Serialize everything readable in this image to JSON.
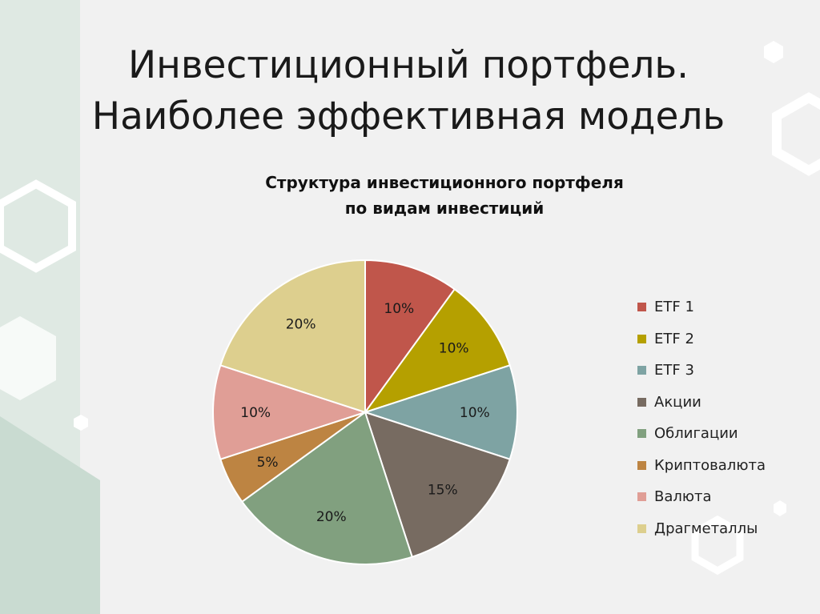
{
  "slide": {
    "title_line1": "Инвестиционный портфель.",
    "title_line2": "Наиболее эффективная модель"
  },
  "chart_data": {
    "type": "pie",
    "title": "Структура инвестиционного портфеля по видам инвестиций",
    "title_line1": "Структура инвестиционного портфеля",
    "title_line2": "по видам инвестиций",
    "legend_position": "right",
    "slices": [
      {
        "name": "ETF 1",
        "value": 10,
        "label": "10%",
        "color": "#c0564b"
      },
      {
        "name": "ETF 2",
        "value": 10,
        "label": "10%",
        "color": "#b5a000"
      },
      {
        "name": "ETF 3",
        "value": 10,
        "label": "10%",
        "color": "#7ea3a3"
      },
      {
        "name": "Акции",
        "value": 15,
        "label": "15%",
        "color": "#776b61"
      },
      {
        "name": "Облигации",
        "value": 20,
        "label": "20%",
        "color": "#81a07f"
      },
      {
        "name": "Криптовалюта",
        "value": 5,
        "label": "5%",
        "color": "#bd8442"
      },
      {
        "name": "Валюта",
        "value": 10,
        "label": "10%",
        "color": "#e09e96"
      },
      {
        "name": "Драгметаллы",
        "value": 20,
        "label": "20%",
        "color": "#ddcf8e"
      }
    ]
  }
}
